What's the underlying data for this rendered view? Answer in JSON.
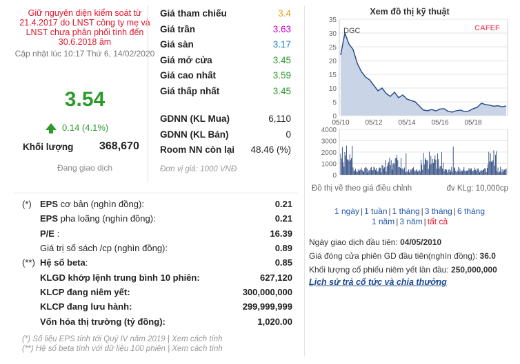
{
  "left": {
    "notice": "Giữ nguyên diện kiểm soát từ 21.4.2017 do LNST công ty mẹ và LNST chưa phân phối tính đến 30.6.2018 âm",
    "updated": "Cập nhật lúc 10:17 Thứ 6, 14/02/2020",
    "price": "3.54",
    "change": "0.14 (4.1%)",
    "volume_label": "Khối lượng",
    "volume_value": "368,670",
    "trading_status": "Đang giao dịch"
  },
  "ref_prices": [
    {
      "label": "Giá tham chiếu",
      "value": "3.4",
      "color": "#e5a11a"
    },
    {
      "label": "Giá trần",
      "value": "3.63",
      "color": "#c400c4"
    },
    {
      "label": "Giá sàn",
      "value": "3.17",
      "color": "#1a7fd6"
    },
    {
      "label": "Giá mở cửa",
      "value": "3.45",
      "color": "#2c9a2c"
    },
    {
      "label": "Giá cao nhất",
      "value": "3.59",
      "color": "#2c9a2c"
    },
    {
      "label": "Giá thấp nhất",
      "value": "3.45",
      "color": "#2c9a2c"
    }
  ],
  "foreign": [
    {
      "label": "GDNN (KL Mua)",
      "value": "6,110"
    },
    {
      "label": "GDNN (KL Bán)",
      "value": "0"
    },
    {
      "label": "Room NN còn lại",
      "value": "48.46 (%)"
    }
  ],
  "unit_note": "Đơn vị giá: 1000 VNĐ",
  "financials": [
    {
      "prefix": "(*)",
      "label": "EPS",
      "label_rest": " cơ bản (nghìn đồng):",
      "value": "0.21",
      "bold": false
    },
    {
      "prefix": "",
      "label": "EPS",
      "label_rest": " pha loãng (nghìn đồng):",
      "value": "0.21",
      "bold": false
    },
    {
      "prefix": "",
      "label": "P/E",
      "label_rest": " :",
      "value": "16.39",
      "bold": false
    },
    {
      "prefix": "",
      "label": "",
      "label_rest": "Giá trị sổ sách /cp (nghìn đồng):",
      "value": "0.89",
      "bold": false
    },
    {
      "prefix": "(**)",
      "label": "Hệ số beta",
      "label_rest": ":",
      "value": "0.85",
      "bold": false
    },
    {
      "prefix": "",
      "label": "KLGD khớp lệnh trung bình 10 phiên",
      "label_rest": ":",
      "value": "627,120",
      "bold": true
    },
    {
      "prefix": "",
      "label": "KLCP đang niêm yết",
      "label_rest": ":",
      "value": "300,000,000",
      "bold": true
    },
    {
      "prefix": "",
      "label": "KLCP đang lưu hành",
      "label_rest": ":",
      "value": "299,999,999",
      "bold": true
    },
    {
      "prefix": "",
      "label": "Vốn hóa thị trường",
      "label_rest": " (tỷ đồng):",
      "value": "1,020.00",
      "bold": true
    }
  ],
  "footnotes": [
    "(*) Số liệu EPS tính tới Quý IV năm 2019 | Xem cách tính",
    "(**) Hệ số beta tính với dữ liệu 100 phiên | Xem cách tính"
  ],
  "chart": {
    "title": "Xem đồ thị kỹ thuật",
    "ticker": "DGC",
    "brand": "CAFEF",
    "note_left": "Đồ thị vẽ theo giá điều chỉnh",
    "note_right": "đv KLg: 10,000cp",
    "price_axis": [
      "35",
      "30",
      "25",
      "20",
      "15",
      "10",
      "5",
      "0"
    ],
    "vol_axis": [
      "4000",
      "3000",
      "2000",
      "1000",
      "0"
    ],
    "x_labels": [
      "05/10",
      "05/12",
      "05/14",
      "05/16",
      "05/18"
    ],
    "colors": {
      "line": "#2a4f8a",
      "fill": "#c9d4e6",
      "bar": "#26427a",
      "grid": "#e6e6e6"
    }
  },
  "periods": {
    "row1": [
      "1 ngày",
      "1 tuần",
      "1 tháng",
      "3 tháng",
      "6 tháng"
    ],
    "row2": [
      "1 năm",
      "3 năm",
      "tất cả"
    ]
  },
  "info": {
    "first_day_label": "Ngày giao dịch đầu tiên:",
    "first_day_value": "04/05/2010",
    "first_price_label": "Giá đóng cửa phiên GD đầu tiên(nghìn đồng):",
    "first_price_value": "36.0",
    "first_vol_label": "Khối lượng cổ phiếu niêm yết lần đầu:",
    "first_vol_value": "250,000,000",
    "history_link": "Lịch sử trả cổ tức và chia thưởng"
  }
}
